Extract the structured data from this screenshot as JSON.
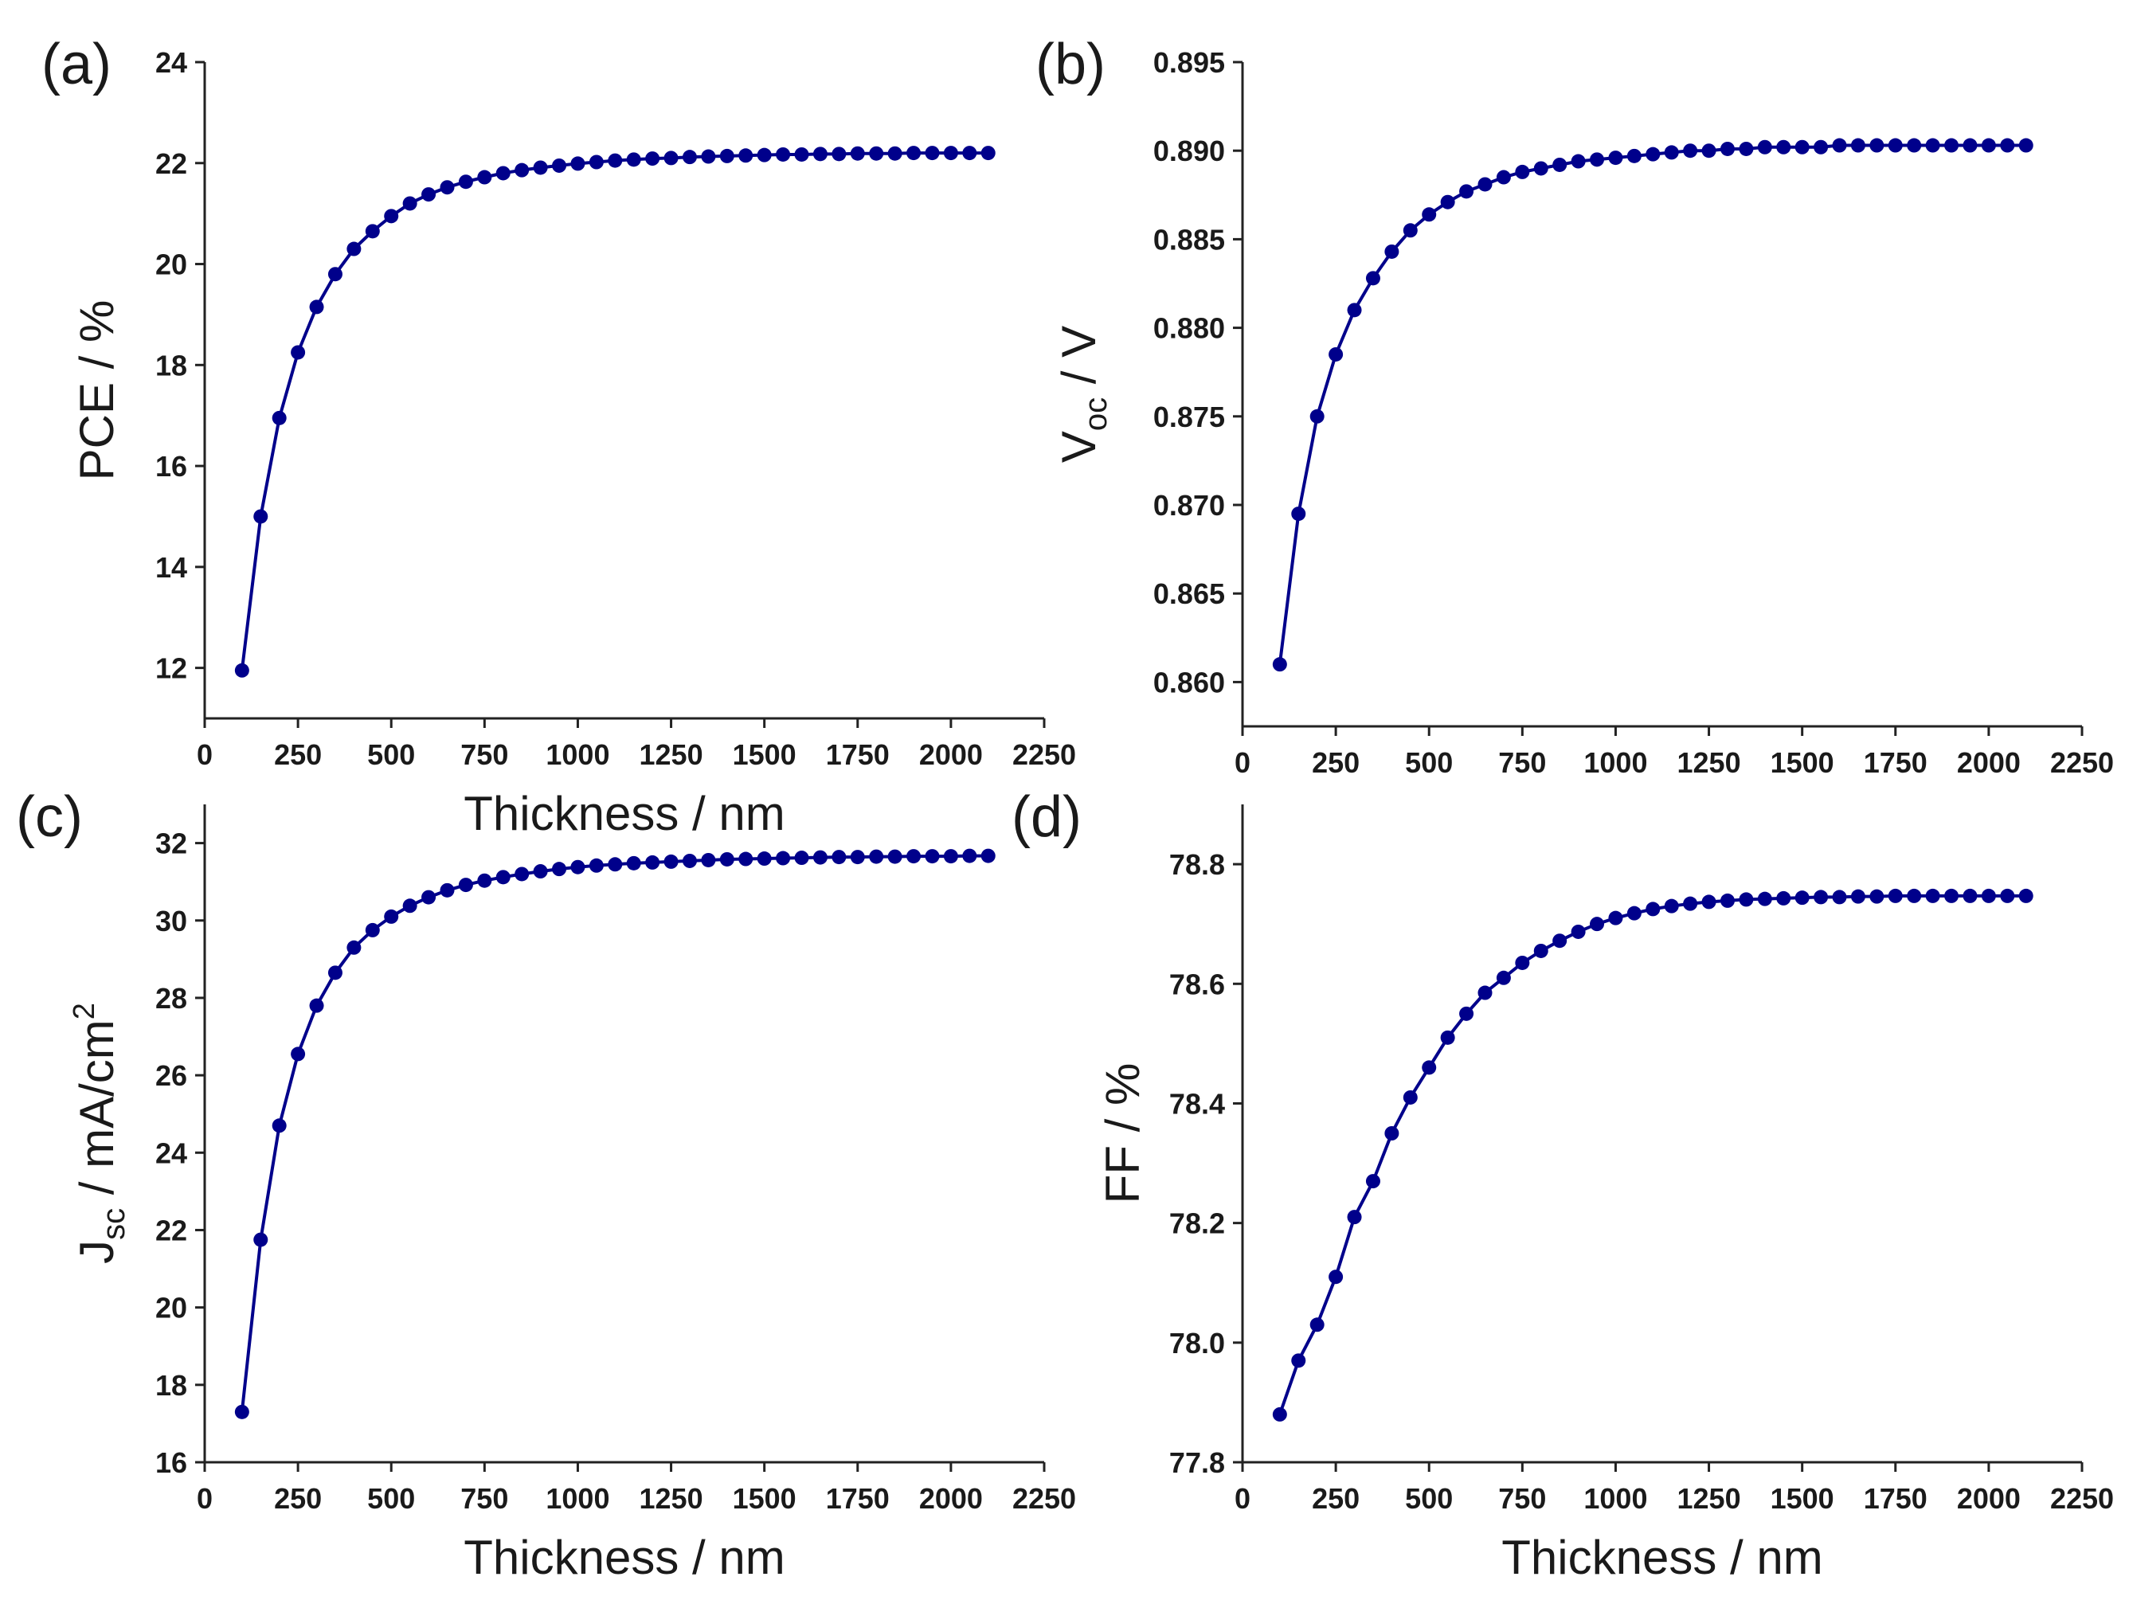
{
  "colors": {
    "series": "#00008b",
    "axis": "#222222",
    "text": "#1a1a1a"
  },
  "chart_data": [
    {
      "id": "a",
      "type": "line",
      "panel_label": "(a)",
      "xlabel": "Thickness / nm",
      "ylabel": {
        "main": "PCE / %"
      },
      "xlim": [
        0,
        2250
      ],
      "ylim": [
        11,
        24
      ],
      "xticks": [
        0,
        250,
        500,
        750,
        1000,
        1250,
        1500,
        1750,
        2000,
        2250
      ],
      "yticks": [
        12,
        14,
        16,
        18,
        20,
        22,
        24
      ],
      "ytick_decimals": 0,
      "x": [
        100,
        150,
        200,
        250,
        300,
        350,
        400,
        450,
        500,
        550,
        600,
        650,
        700,
        750,
        800,
        850,
        900,
        950,
        1000,
        1050,
        1100,
        1150,
        1200,
        1250,
        1300,
        1350,
        1400,
        1450,
        1500,
        1550,
        1600,
        1650,
        1700,
        1750,
        1800,
        1850,
        1900,
        1950,
        2000,
        2050,
        2100
      ],
      "y": [
        11.95,
        15.0,
        16.95,
        18.25,
        19.15,
        19.8,
        20.3,
        20.65,
        20.95,
        21.2,
        21.38,
        21.52,
        21.63,
        21.72,
        21.8,
        21.86,
        21.91,
        21.95,
        21.99,
        22.02,
        22.05,
        22.07,
        22.09,
        22.1,
        22.12,
        22.13,
        22.14,
        22.15,
        22.16,
        22.17,
        22.17,
        22.18,
        22.18,
        22.19,
        22.19,
        22.19,
        22.2,
        22.2,
        22.2,
        22.2,
        22.2
      ]
    },
    {
      "id": "b",
      "type": "line",
      "panel_label": "(b)",
      "xlabel": "",
      "ylabel": {
        "main": "V",
        "sub": "oc",
        "suffix": " / V"
      },
      "xlim": [
        0,
        2250
      ],
      "ylim": [
        0.8575,
        0.895
      ],
      "xticks": [
        0,
        250,
        500,
        750,
        1000,
        1250,
        1500,
        1750,
        2000,
        2250
      ],
      "yticks": [
        0.86,
        0.865,
        0.87,
        0.875,
        0.88,
        0.885,
        0.89,
        0.895
      ],
      "ytick_decimals": 3,
      "x": [
        100,
        150,
        200,
        250,
        300,
        350,
        400,
        450,
        500,
        550,
        600,
        650,
        700,
        750,
        800,
        850,
        900,
        950,
        1000,
        1050,
        1100,
        1150,
        1200,
        1250,
        1300,
        1350,
        1400,
        1450,
        1500,
        1550,
        1600,
        1650,
        1700,
        1750,
        1800,
        1850,
        1900,
        1950,
        2000,
        2050,
        2100
      ],
      "y": [
        0.861,
        0.8695,
        0.875,
        0.8785,
        0.881,
        0.8828,
        0.8843,
        0.8855,
        0.8864,
        0.8871,
        0.8877,
        0.8881,
        0.8885,
        0.8888,
        0.889,
        0.8892,
        0.8894,
        0.8895,
        0.8896,
        0.8897,
        0.8898,
        0.8899,
        0.89,
        0.89,
        0.8901,
        0.8901,
        0.8902,
        0.8902,
        0.8902,
        0.8902,
        0.8903,
        0.8903,
        0.8903,
        0.8903,
        0.8903,
        0.8903,
        0.8903,
        0.8903,
        0.8903,
        0.8903,
        0.8903
      ]
    },
    {
      "id": "c",
      "type": "line",
      "panel_label": "(c)",
      "xlabel": "Thickness / nm",
      "ylabel": {
        "main": "J",
        "sub": "sc",
        "suffix": " / mA/cm",
        "sup": "2"
      },
      "xlim": [
        0,
        2250
      ],
      "ylim": [
        16,
        33
      ],
      "xticks": [
        0,
        250,
        500,
        750,
        1000,
        1250,
        1500,
        1750,
        2000,
        2250
      ],
      "yticks": [
        16,
        18,
        20,
        22,
        24,
        26,
        28,
        30,
        32
      ],
      "ytick_decimals": 0,
      "x": [
        100,
        150,
        200,
        250,
        300,
        350,
        400,
        450,
        500,
        550,
        600,
        650,
        700,
        750,
        800,
        850,
        900,
        950,
        1000,
        1050,
        1100,
        1150,
        1200,
        1250,
        1300,
        1350,
        1400,
        1450,
        1500,
        1550,
        1600,
        1650,
        1700,
        1750,
        1800,
        1850,
        1900,
        1950,
        2000,
        2050,
        2100
      ],
      "y": [
        17.3,
        21.75,
        24.7,
        26.55,
        27.8,
        28.65,
        29.3,
        29.75,
        30.1,
        30.38,
        30.6,
        30.78,
        30.92,
        31.03,
        31.12,
        31.2,
        31.27,
        31.33,
        31.38,
        31.42,
        31.45,
        31.48,
        31.5,
        31.52,
        31.54,
        31.56,
        31.58,
        31.59,
        31.6,
        31.61,
        31.62,
        31.63,
        31.64,
        31.64,
        31.65,
        31.65,
        31.66,
        31.66,
        31.66,
        31.67,
        31.67
      ]
    },
    {
      "id": "d",
      "type": "line",
      "panel_label": "(d)",
      "xlabel": "Thickness / nm",
      "ylabel": {
        "main": "FF / %"
      },
      "xlim": [
        0,
        2250
      ],
      "ylim": [
        77.8,
        78.9
      ],
      "xticks": [
        0,
        250,
        500,
        750,
        1000,
        1250,
        1500,
        1750,
        2000,
        2250
      ],
      "yticks": [
        77.8,
        78.0,
        78.2,
        78.4,
        78.6,
        78.8
      ],
      "ytick_decimals": 1,
      "x": [
        100,
        150,
        200,
        250,
        300,
        350,
        400,
        450,
        500,
        550,
        600,
        650,
        700,
        750,
        800,
        850,
        900,
        950,
        1000,
        1050,
        1100,
        1150,
        1200,
        1250,
        1300,
        1350,
        1400,
        1450,
        1500,
        1550,
        1600,
        1650,
        1700,
        1750,
        1800,
        1850,
        1900,
        1950,
        2000,
        2050,
        2100
      ],
      "y": [
        77.88,
        77.97,
        78.03,
        78.11,
        78.21,
        78.27,
        78.35,
        78.41,
        78.46,
        78.51,
        78.55,
        78.585,
        78.61,
        78.635,
        78.655,
        78.672,
        78.687,
        78.7,
        78.71,
        78.718,
        78.725,
        78.73,
        78.734,
        78.737,
        78.739,
        78.741,
        78.742,
        78.743,
        78.744,
        78.745,
        78.745,
        78.746,
        78.746,
        78.747,
        78.747,
        78.747,
        78.747,
        78.747,
        78.747,
        78.747,
        78.747
      ]
    }
  ]
}
